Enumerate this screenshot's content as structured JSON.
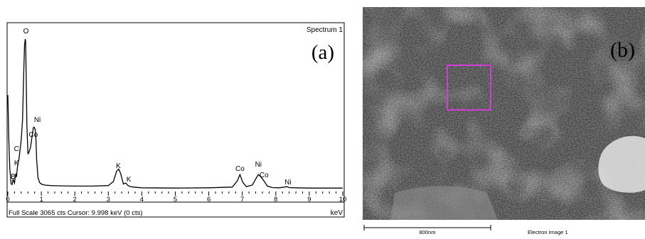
{
  "panel_a": {
    "label": "(a)",
    "spectrum_name": "Spectrum 1",
    "footer": "Full Scale 3065 cts  Cursor: 9.998 keV (0 cts)",
    "unit": "keV"
  },
  "panel_b": {
    "label": "(b)",
    "scale_bar_label": "800nm",
    "image_caption": "Electron Image 1",
    "roi_color": "#d23cd8"
  },
  "chart_data": {
    "type": "line",
    "title": "Spectrum 1",
    "xlabel": "keV",
    "xlim": [
      0,
      10
    ],
    "ylim": [
      0,
      3065
    ],
    "x_ticks": [
      "0",
      "1",
      "2",
      "3",
      "4",
      "5",
      "6",
      "7",
      "8",
      "9",
      "10"
    ],
    "footer_text": "Full Scale 3065 cts  Cursor: 9.998 keV (0 cts)",
    "series": [
      {
        "x": [
          0.0,
          0.03,
          0.06,
          0.1,
          0.13,
          0.16,
          0.18,
          0.2,
          0.22,
          0.24,
          0.26,
          0.28,
          0.3,
          0.33,
          0.36,
          0.4,
          0.44,
          0.47,
          0.5,
          0.52,
          0.53,
          0.55,
          0.57,
          0.6,
          0.64,
          0.68,
          0.72,
          0.76,
          0.78,
          0.8,
          0.82,
          0.84,
          0.86,
          0.9,
          0.95,
          1.0,
          1.1,
          1.3,
          1.5,
          2.0,
          2.5,
          3.0,
          3.15,
          3.25,
          3.31,
          3.37,
          3.45,
          3.52,
          3.59,
          3.66,
          3.75,
          4.0,
          5.0,
          6.0,
          6.7,
          6.85,
          6.93,
          7.01,
          7.12,
          7.3,
          7.4,
          7.48,
          7.56,
          7.65,
          7.75,
          7.9,
          8.1,
          8.26,
          8.32,
          8.4,
          8.6,
          9.0,
          9.5,
          10.0
        ],
        "y": [
          1900,
          1000,
          420,
          120,
          110,
          220,
          170,
          140,
          260,
          330,
          260,
          420,
          520,
          600,
          780,
          1000,
          1400,
          2200,
          2900,
          3020,
          2990,
          2200,
          1300,
          720,
          770,
          860,
          1060,
          1240,
          1260,
          1240,
          1200,
          1000,
          620,
          250,
          150,
          120,
          100,
          90,
          85,
          80,
          80,
          90,
          170,
          380,
          420,
          330,
          120,
          140,
          90,
          70,
          60,
          45,
          40,
          45,
          60,
          180,
          310,
          160,
          70,
          100,
          220,
          310,
          260,
          180,
          80,
          50,
          45,
          60,
          70,
          50,
          45,
          40,
          40,
          40
        ]
      }
    ],
    "peak_labels": [
      {
        "text": "O",
        "x": 0.52
      },
      {
        "text": "Ni",
        "x": 0.84
      },
      {
        "text": "Co",
        "x": 0.74
      },
      {
        "text": "C",
        "x": 0.28
      },
      {
        "text": "K",
        "x": 0.28
      },
      {
        "text": "B",
        "x": 0.18
      },
      {
        "text": "K",
        "x": 3.3
      },
      {
        "text": "K",
        "x": 3.59
      },
      {
        "text": "Co",
        "x": 6.93
      },
      {
        "text": "Ni",
        "x": 7.48
      },
      {
        "text": "Co",
        "x": 7.65
      },
      {
        "text": "Ni",
        "x": 8.32
      }
    ]
  }
}
